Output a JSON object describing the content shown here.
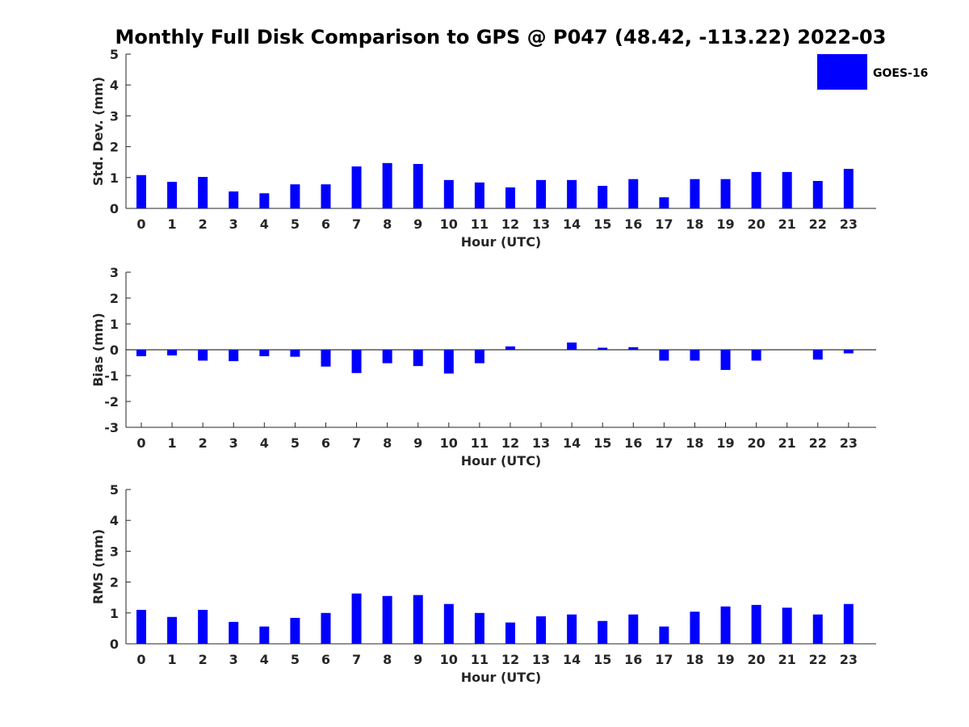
{
  "title": "Monthly Full Disk Comparison to GPS @ P047 (48.42, -113.22) 2022-03",
  "colors": {
    "bar": "#0000ff",
    "axis": "#262626"
  },
  "chart_data": [
    {
      "type": "bar",
      "id": "std",
      "categories": [
        "0",
        "1",
        "2",
        "3",
        "4",
        "5",
        "6",
        "7",
        "8",
        "9",
        "10",
        "11",
        "12",
        "13",
        "14",
        "15",
        "16",
        "17",
        "18",
        "19",
        "20",
        "21",
        "22",
        "23"
      ],
      "series": [
        {
          "name": "GOES-16",
          "values": [
            1.08,
            0.86,
            1.02,
            0.55,
            0.49,
            0.78,
            0.78,
            1.36,
            1.47,
            1.44,
            0.92,
            0.84,
            0.68,
            0.92,
            0.92,
            0.73,
            0.95,
            0.36,
            0.95,
            0.95,
            1.18,
            1.18,
            0.89,
            1.28
          ]
        }
      ],
      "xlabel": "Hour (UTC)",
      "ylabel": "Std. Dev. (mm)",
      "ylim": [
        0,
        5
      ],
      "yticks": [
        "0",
        "1",
        "2",
        "3",
        "4",
        "5"
      ],
      "legend": "top-right",
      "grid": false
    },
    {
      "type": "bar",
      "id": "bias",
      "categories": [
        "0",
        "1",
        "2",
        "3",
        "4",
        "5",
        "6",
        "7",
        "8",
        "9",
        "10",
        "11",
        "12",
        "13",
        "14",
        "15",
        "16",
        "17",
        "18",
        "19",
        "20",
        "21",
        "22",
        "23"
      ],
      "series": [
        {
          "name": "GOES-16",
          "values": [
            -0.25,
            -0.22,
            -0.42,
            -0.44,
            -0.25,
            -0.27,
            -0.65,
            -0.9,
            -0.52,
            -0.63,
            -0.92,
            -0.52,
            0.13,
            0.0,
            0.28,
            0.08,
            0.1,
            -0.42,
            -0.42,
            -0.78,
            -0.42,
            0.0,
            -0.38,
            -0.14
          ]
        }
      ],
      "xlabel": "Hour (UTC)",
      "ylabel": "Bias (mm)",
      "ylim": [
        -3,
        3
      ],
      "yticks": [
        "-3",
        "-2",
        "-1",
        "0",
        "1",
        "2",
        "3"
      ],
      "grid": false
    },
    {
      "type": "bar",
      "id": "rms",
      "categories": [
        "0",
        "1",
        "2",
        "3",
        "4",
        "5",
        "6",
        "7",
        "8",
        "9",
        "10",
        "11",
        "12",
        "13",
        "14",
        "15",
        "16",
        "17",
        "18",
        "19",
        "20",
        "21",
        "22",
        "23"
      ],
      "series": [
        {
          "name": "GOES-16",
          "values": [
            1.1,
            0.87,
            1.1,
            0.71,
            0.56,
            0.84,
            1.0,
            1.63,
            1.55,
            1.58,
            1.29,
            1.0,
            0.69,
            0.89,
            0.95,
            0.74,
            0.95,
            0.56,
            1.04,
            1.21,
            1.26,
            1.17,
            0.95,
            1.29
          ]
        }
      ],
      "xlabel": "Hour (UTC)",
      "ylabel": "RMS (mm)",
      "ylim": [
        0,
        5
      ],
      "yticks": [
        "0",
        "1",
        "2",
        "3",
        "4",
        "5"
      ],
      "grid": false
    }
  ]
}
